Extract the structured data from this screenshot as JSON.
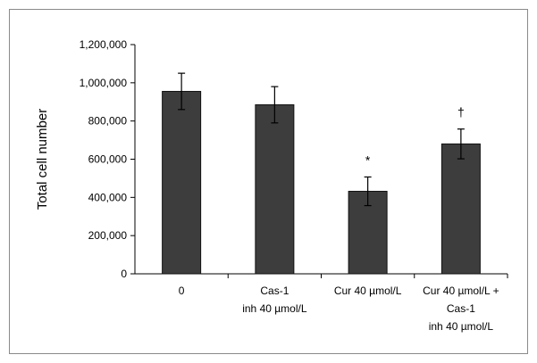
{
  "chart_data": {
    "type": "bar",
    "title": "",
    "xlabel": "",
    "ylabel": "Total cell number",
    "ylim": [
      0,
      1200000
    ],
    "yticks": [
      0,
      200000,
      400000,
      600000,
      800000,
      1000000,
      1200000
    ],
    "ytick_labels": [
      "0",
      "200,000",
      "400,000",
      "600,000",
      "800,000",
      "1,000,000",
      "1,200,000"
    ],
    "categories": [
      "0",
      "Cas-1 inh 40 µmol/L",
      "Cur 40 µmol/L",
      "Cur 40 µmol/L + Cas-1 inh 40 µmol/L"
    ],
    "category_lines": [
      [
        "0"
      ],
      [
        "Cas-1",
        "inh 40 µmol/L"
      ],
      [
        "Cur 40 µmol/L"
      ],
      [
        "Cur 40 µmol/L +",
        "Cas-1",
        "inh 40 µmol/L"
      ]
    ],
    "values": [
      955000,
      885000,
      432000,
      680000
    ],
    "errors": [
      95000,
      95000,
      75000,
      78000
    ],
    "annotations": [
      "",
      "",
      "*",
      "†"
    ],
    "bar_color": "#3d3d3d",
    "grid": false,
    "legend": "none"
  }
}
